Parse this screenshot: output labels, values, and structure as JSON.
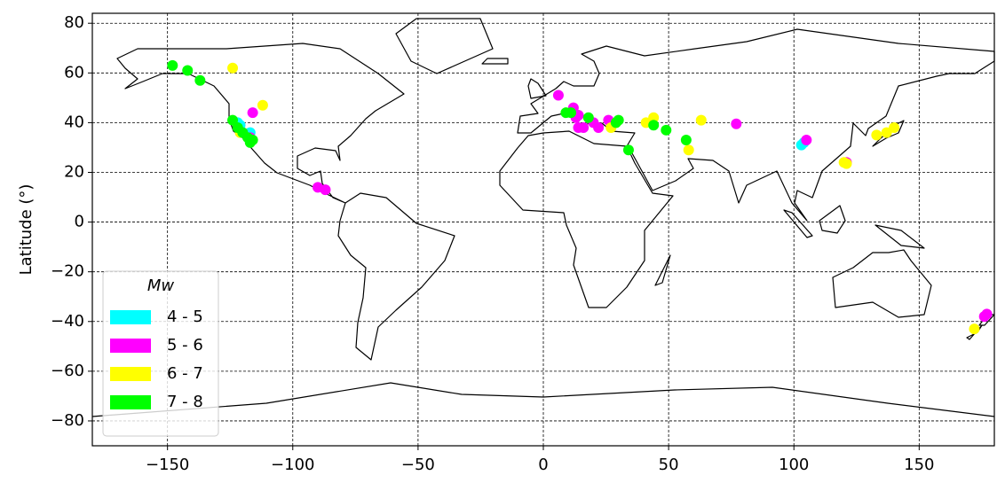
{
  "chart_data": {
    "type": "scatter",
    "y_label": "Latitude (°)",
    "legend_title": "Mw",
    "legend_loc": "lower left",
    "grid": true,
    "xlim": [
      -180,
      180
    ],
    "ylim": [
      -90,
      84
    ],
    "xticks": [
      {
        "value": -150,
        "label": "−150"
      },
      {
        "value": -100,
        "label": "−100"
      },
      {
        "value": -50,
        "label": "−50"
      },
      0,
      50,
      100,
      150
    ],
    "yticks": [
      {
        "value": -80,
        "label": "−80"
      },
      {
        "value": -60,
        "label": "−60"
      },
      {
        "value": -40,
        "label": "−40"
      },
      {
        "value": -20,
        "label": "−20"
      },
      0,
      20,
      40,
      60,
      80
    ],
    "series": [
      {
        "name": "4 - 5",
        "color": "#00ffff",
        "x": [
          -121,
          -118,
          -122,
          103,
          104,
          -117
        ],
        "y": [
          39,
          35,
          40,
          31,
          32,
          36
        ]
      },
      {
        "name": "5 - 6",
        "color": "#ff00ff",
        "x": [
          6,
          -116,
          -90,
          -87,
          13,
          14,
          16,
          20,
          22,
          26,
          77,
          105,
          121,
          176,
          177,
          -117,
          -120,
          14,
          12
        ],
        "y": [
          51,
          44,
          14,
          13,
          42,
          43,
          38,
          40,
          38,
          41,
          39.5,
          33,
          24,
          -38,
          -37,
          34,
          36,
          38,
          46
        ]
      },
      {
        "name": "6 - 7",
        "color": "#ffff00",
        "x": [
          -124,
          -112,
          -121,
          29,
          41,
          44,
          63,
          58,
          133,
          137,
          140,
          120,
          172,
          27,
          121
        ],
        "y": [
          62,
          47,
          36,
          40,
          40,
          42,
          41,
          29,
          35,
          36,
          38,
          24,
          -43,
          38,
          23.5
        ]
      },
      {
        "name": "7 - 8",
        "color": "#00ff00",
        "x": [
          -148,
          -142,
          -137,
          -124,
          -122,
          -120,
          -118,
          -116,
          -117,
          9,
          18,
          30,
          34,
          44,
          49,
          57,
          29,
          11
        ],
        "y": [
          63,
          61,
          57,
          41,
          38,
          36,
          34,
          33,
          32,
          44,
          42,
          41,
          29,
          39,
          37,
          33,
          40,
          44
        ]
      }
    ]
  }
}
